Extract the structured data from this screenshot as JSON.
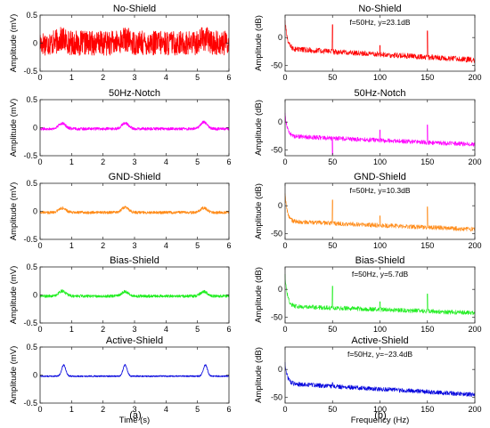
{
  "chart_data": [
    {
      "type": "line",
      "title": "No-Shield",
      "xlabel": "",
      "ylabel": "Amplitude (mV)",
      "xlim": [
        0,
        6
      ],
      "ylim": [
        -0.5,
        0.5
      ],
      "xticks": [
        0,
        1,
        2,
        3,
        4,
        5,
        6
      ],
      "yticks": [
        -0.5,
        0,
        0.5
      ],
      "series": [
        {
          "color": "#ff0000",
          "baseline": 0.0,
          "noise": 0.22,
          "bumps": [
            [
              0.7,
              0.07
            ],
            [
              2.7,
              0.07
            ],
            [
              5.2,
              0.09
            ]
          ],
          "bump_width": 0.25
        }
      ]
    },
    {
      "type": "line",
      "title": "50Hz-Notch",
      "xlabel": "",
      "ylabel": "Amplitude (mV)",
      "xlim": [
        0,
        6
      ],
      "ylim": [
        -0.5,
        0.5
      ],
      "xticks": [
        0,
        1,
        2,
        3,
        4,
        5,
        6
      ],
      "yticks": [
        -0.5,
        0,
        0.5
      ],
      "series": [
        {
          "color": "#ff00ff",
          "baseline": -0.02,
          "noise": 0.025,
          "bumps": [
            [
              0.7,
              0.1
            ],
            [
              2.7,
              0.1
            ],
            [
              5.2,
              0.12
            ]
          ],
          "bump_width": 0.22
        }
      ]
    },
    {
      "type": "line",
      "title": "GND-Shield",
      "xlabel": "",
      "ylabel": "Amplitude (mV)",
      "xlim": [
        0,
        6
      ],
      "ylim": [
        -0.5,
        0.5
      ],
      "xticks": [
        0,
        1,
        2,
        3,
        4,
        5,
        6
      ],
      "yticks": [
        -0.5,
        0,
        0.5
      ],
      "series": [
        {
          "color": "#ff8c1a",
          "baseline": -0.02,
          "noise": 0.025,
          "bumps": [
            [
              0.7,
              0.08
            ],
            [
              2.7,
              0.09
            ],
            [
              5.2,
              0.08
            ]
          ],
          "bump_width": 0.22
        }
      ]
    },
    {
      "type": "line",
      "title": "Bias-Shield",
      "xlabel": "",
      "ylabel": "Amplitude (mV)",
      "xlim": [
        0,
        6
      ],
      "ylim": [
        -0.5,
        0.5
      ],
      "xticks": [
        0,
        1,
        2,
        3,
        4,
        5,
        6
      ],
      "yticks": [
        -0.5,
        0,
        0.5
      ],
      "series": [
        {
          "color": "#22ee22",
          "baseline": -0.02,
          "noise": 0.025,
          "bumps": [
            [
              0.7,
              0.09
            ],
            [
              2.7,
              0.08
            ],
            [
              5.2,
              0.08
            ]
          ],
          "bump_width": 0.22
        }
      ]
    },
    {
      "type": "line",
      "title": "Active-Shield",
      "xlabel": "Time (s)",
      "ylabel": "Amplitude (mV)",
      "xlim": [
        0,
        6
      ],
      "ylim": [
        -0.5,
        0.5
      ],
      "xticks": [
        0,
        1,
        2,
        3,
        4,
        5,
        6
      ],
      "yticks": [
        -0.5,
        0,
        0.5
      ],
      "series": [
        {
          "color": "#0000dd",
          "baseline": -0.02,
          "noise": 0.012,
          "bumps": [
            [
              0.75,
              0.2
            ],
            [
              2.7,
              0.2
            ],
            [
              5.25,
              0.2
            ]
          ],
          "bump_width": 0.13
        }
      ]
    },
    {
      "type": "line",
      "title": "No-Shield",
      "xlabel": "",
      "ylabel": "Amplitude (dB)",
      "xlim": [
        0,
        200
      ],
      "ylim": [
        -60,
        40
      ],
      "xticks": [
        0,
        50,
        100,
        150,
        200
      ],
      "yticks": [
        -50,
        0
      ],
      "annotation": "f=50Hz, y=23.1dB",
      "series": [
        {
          "color": "#ff0000",
          "floor_start": -20,
          "floor_end": -40,
          "noise": 5,
          "initial": 30,
          "peaks": [
            [
              50,
              23.1
            ],
            [
              100,
              -14
            ],
            [
              150,
              12
            ]
          ]
        }
      ]
    },
    {
      "type": "line",
      "title": "50Hz-Notch",
      "xlabel": "",
      "ylabel": "Amplitude (dB)",
      "xlim": [
        0,
        200
      ],
      "ylim": [
        -60,
        40
      ],
      "xticks": [
        0,
        50,
        100,
        150,
        200
      ],
      "yticks": [
        -50,
        0
      ],
      "annotation": "",
      "series": [
        {
          "color": "#ff00ff",
          "floor_start": -25,
          "floor_end": -40,
          "noise": 4,
          "initial": 15,
          "peaks": [
            [
              50,
              -58
            ],
            [
              100,
              -14
            ],
            [
              150,
              -5
            ]
          ]
        }
      ]
    },
    {
      "type": "line",
      "title": "GND-Shield",
      "xlabel": "",
      "ylabel": "Amplitude (dB)",
      "xlim": [
        0,
        200
      ],
      "ylim": [
        -60,
        40
      ],
      "xticks": [
        0,
        50,
        100,
        150,
        200
      ],
      "yticks": [
        -50,
        0
      ],
      "annotation": "f=50Hz, y=10.3dB",
      "series": [
        {
          "color": "#ff8c1a",
          "floor_start": -28,
          "floor_end": -42,
          "noise": 4,
          "initial": 20,
          "peaks": [
            [
              50,
              10.3
            ],
            [
              100,
              -18
            ],
            [
              150,
              -2
            ]
          ]
        }
      ]
    },
    {
      "type": "line",
      "title": "Bias-Shield",
      "xlabel": "",
      "ylabel": "Amplitude (dB)",
      "xlim": [
        0,
        200
      ],
      "ylim": [
        -60,
        40
      ],
      "xticks": [
        0,
        50,
        100,
        150,
        200
      ],
      "yticks": [
        -50,
        0
      ],
      "annotation": "f=50Hz, y=5.7dB",
      "series": [
        {
          "color": "#22ee22",
          "floor_start": -30,
          "floor_end": -42,
          "noise": 4,
          "initial": 25,
          "peaks": [
            [
              50,
              5.7
            ],
            [
              100,
              -22
            ],
            [
              150,
              -8
            ]
          ]
        }
      ]
    },
    {
      "type": "line",
      "title": "Active-Shield",
      "xlabel": "Frequency (Hz)",
      "ylabel": "Amplitude (dB)",
      "xlim": [
        0,
        200
      ],
      "ylim": [
        -60,
        40
      ],
      "xticks": [
        0,
        50,
        100,
        150,
        200
      ],
      "yticks": [
        -50,
        0
      ],
      "annotation": "f=50Hz, y=−23.4dB",
      "series": [
        {
          "color": "#0000dd",
          "floor_start": -25,
          "floor_end": -45,
          "noise": 4,
          "initial": 10,
          "peaks": [
            [
              50,
              -23.4
            ]
          ]
        }
      ]
    }
  ],
  "captions": {
    "left": "(a)",
    "right": "(b)"
  }
}
